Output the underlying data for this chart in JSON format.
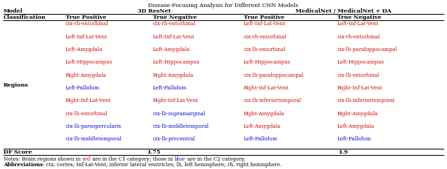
{
  "title": "Disease-Focusing Analysis for Different CNN Models",
  "sub_headers": [
    "Classification",
    "True Positive",
    "True Negative",
    "True Positive",
    "True Negative"
  ],
  "regions_label": "Regions",
  "df_score_label": "DF Score",
  "df_scores": [
    "1.75",
    "1.9"
  ],
  "columns": [
    {
      "entries": [
        {
          "text": "ctx-rh-entorhinal",
          "color": "#cc0000"
        },
        {
          "text": "Left-Inf-Lat-Vent",
          "color": "#cc0000"
        },
        {
          "text": "Left-Amygdala",
          "color": "#cc0000"
        },
        {
          "text": "Left-Hippocampus",
          "color": "#cc0000"
        },
        {
          "text": "Right-Amygdala",
          "color": "#cc0000"
        },
        {
          "text": "Left-Pallidum",
          "color": "#0000cc"
        },
        {
          "text": "Right-Inf-Lat-Vent",
          "color": "#cc0000"
        },
        {
          "text": "ctx-lh-entorhinal",
          "color": "#cc0000"
        },
        {
          "text": "ctx-lh-parsopercularis",
          "color": "#0000cc"
        },
        {
          "text": "ctx-lh-middletemporal",
          "color": "#0000cc"
        }
      ]
    },
    {
      "entries": [
        {
          "text": "ctx-rh-entorhinal",
          "color": "#cc0000"
        },
        {
          "text": "Left-Inf-Lat-Vent",
          "color": "#cc0000"
        },
        {
          "text": "Left-Amygdala",
          "color": "#cc0000"
        },
        {
          "text": "Left-Hippocampus",
          "color": "#cc0000"
        },
        {
          "text": "Right-Amygdala",
          "color": "#cc0000"
        },
        {
          "text": "Left-Pallidum",
          "color": "#0000cc"
        },
        {
          "text": "Right-Inf-Lat-Vent",
          "color": "#cc0000"
        },
        {
          "text": "ctx-lh-supramarginal",
          "color": "#0000cc"
        },
        {
          "text": "ctx-lh-middletemporal",
          "color": "#0000cc"
        },
        {
          "text": "ctx-lh-precentral",
          "color": "#0000cc"
        }
      ]
    },
    {
      "entries": [
        {
          "text": "Left-Inf-Lat-Vent",
          "color": "#cc0000"
        },
        {
          "text": "ctx-rh-entorhinal",
          "color": "#cc0000"
        },
        {
          "text": "ctx-lh-entorhinal",
          "color": "#cc0000"
        },
        {
          "text": "Left-Hippocampus",
          "color": "#cc0000"
        },
        {
          "text": "ctx-lh-parahippocampal",
          "color": "#cc0000"
        },
        {
          "text": "Right-Inf-Lat-Vent",
          "color": "#cc0000"
        },
        {
          "text": "ctx-lh-inferiortemporal",
          "color": "#cc0000"
        },
        {
          "text": "Right-Amygdala",
          "color": "#cc0000"
        },
        {
          "text": "Left-Amygdala",
          "color": "#cc0000"
        },
        {
          "text": "Left-Pallidum",
          "color": "#0000cc"
        }
      ]
    },
    {
      "entries": [
        {
          "text": "Left-Inf-Lat-Vent",
          "color": "#cc0000"
        },
        {
          "text": "ctx-rh-entorhinal",
          "color": "#cc0000"
        },
        {
          "text": "ctx-lh-parahippocampal",
          "color": "#cc0000"
        },
        {
          "text": "Left-Hippocampus",
          "color": "#cc0000"
        },
        {
          "text": "ctx-lh-entorhinal",
          "color": "#cc0000"
        },
        {
          "text": "Right-Inf-Lat-Vent",
          "color": "#cc0000"
        },
        {
          "text": "ctx-lh-inferiortemporal",
          "color": "#cc0000"
        },
        {
          "text": "Right-Amygdala",
          "color": "#cc0000"
        },
        {
          "text": "Left-Amygdala",
          "color": "#cc0000"
        },
        {
          "text": "Left-Pallidum",
          "color": "#0000cc"
        }
      ]
    }
  ]
}
